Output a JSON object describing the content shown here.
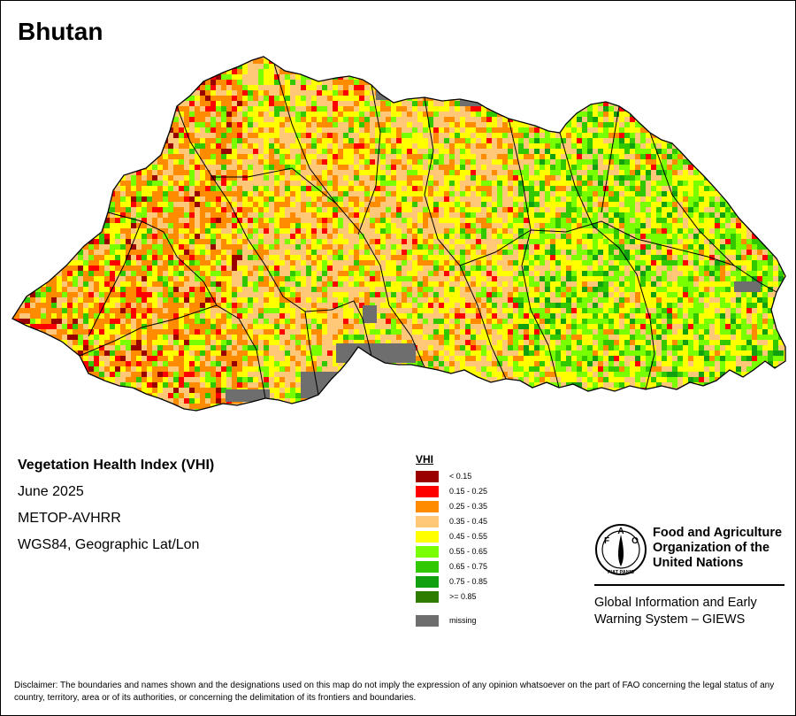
{
  "map": {
    "title": "Bhutan",
    "info": {
      "index_name": "Vegetation Health Index (VHI)",
      "date": "June 2025",
      "sensor": "METOP-AVHRR",
      "projection": "WGS84, Geographic Lat/Lon"
    }
  },
  "legend": {
    "title": "VHI",
    "classes": [
      {
        "label": "< 0.15",
        "color": "#990000"
      },
      {
        "label": "0.15 - 0.25",
        "color": "#ff0000"
      },
      {
        "label": "0.25 - 0.35",
        "color": "#ff8c00"
      },
      {
        "label": "0.35 - 0.45",
        "color": "#ffc878"
      },
      {
        "label": "0.45 - 0.55",
        "color": "#ffff00"
      },
      {
        "label": "0.55 - 0.65",
        "color": "#78ff00"
      },
      {
        "label": "0.65 - 0.75",
        "color": "#32c800"
      },
      {
        "label": "0.75 - 0.85",
        "color": "#10a010"
      },
      {
        "label": ">= 0.85",
        "color": "#2e7d00"
      }
    ],
    "missing": {
      "label": "missing",
      "color": "#6e6e6e"
    }
  },
  "logo": {
    "name_lines": [
      "Food and Agriculture",
      "Organization of the",
      "United Nations"
    ],
    "emblem_text": "FIAT PANIS",
    "emblem_letters": [
      "F",
      "A",
      "O"
    ],
    "program_lines": [
      "Global Information and Early",
      "Warning System – GIEWS"
    ]
  },
  "disclaimer": "Disclaimer: The boundaries and names shown and the designations used on this map do not imply the expression of any opinion whatsoever on the part of FAO concerning the legal status of any country, territory, area or of its authorities, or concerning the delimitation of its frontiers and boundaries."
}
